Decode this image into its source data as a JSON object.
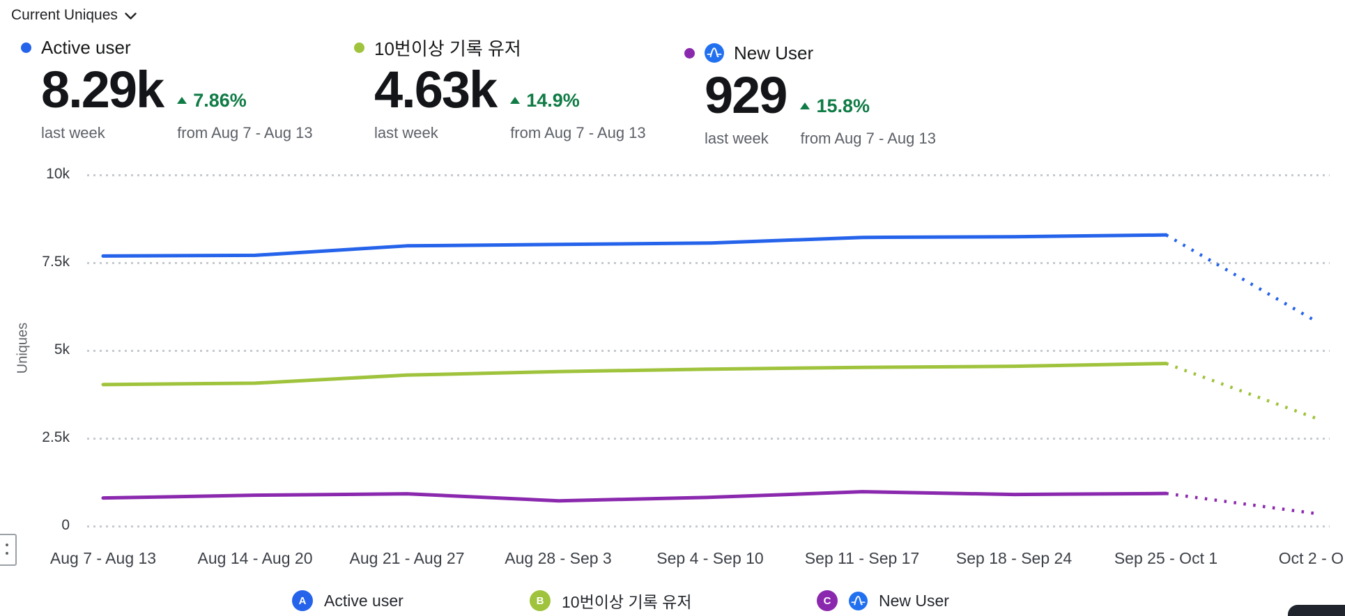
{
  "header": {
    "metric_selector_label": "Current Uniques"
  },
  "metrics": [
    {
      "name": "Active user",
      "value": "8.29k",
      "value_caption": "last week",
      "trend_direction": "up",
      "trend": "7.86%",
      "trend_caption": "from Aug 7 - Aug 13",
      "color": "#2563eb"
    },
    {
      "name": "10번이상 기록 유저",
      "value": "4.63k",
      "value_caption": "last week",
      "trend_direction": "up",
      "trend": "14.9%",
      "trend_caption": "from Aug 7 - Aug 13",
      "color": "#9fc33c"
    },
    {
      "name": "New User",
      "value": "929",
      "value_caption": "last week",
      "trend_direction": "up",
      "trend": "15.8%",
      "trend_caption": "from Aug 7 - Aug 13",
      "color": "#8a28ae",
      "source_icon": "amplitude-icon"
    }
  ],
  "chart_data": {
    "type": "line",
    "title": "Current Uniques",
    "xlabel": "",
    "ylabel": "Uniques",
    "ylim": [
      0,
      10000
    ],
    "yticks": [
      "0",
      "2.5k",
      "5k",
      "7.5k",
      "10k"
    ],
    "ytick_values": [
      0,
      2500,
      5000,
      7500,
      10000
    ],
    "grid": "horizontal-dotted",
    "legend_position": "bottom",
    "categories": [
      "Aug 7 - Aug 13",
      "Aug 14 - Aug 20",
      "Aug 21 - Aug 27",
      "Aug 28 - Sep 3",
      "Sep 4 - Sep 10",
      "Sep 11 - Sep 17",
      "Sep 18 - Sep 24",
      "Sep 25 - Oct 1",
      "Oct 2 - O..."
    ],
    "series": [
      {
        "name": "Active user",
        "color": "#2563eb",
        "values": [
          7690,
          7710,
          7980,
          8020,
          8060,
          8220,
          8240,
          8290
        ],
        "projected_value": 5800,
        "projected_style": "dotted"
      },
      {
        "name": "10번이상 기록 유저",
        "color": "#9fc33c",
        "values": [
          4030,
          4070,
          4300,
          4400,
          4470,
          4520,
          4550,
          4630
        ],
        "projected_value": 3050,
        "projected_style": "dotted"
      },
      {
        "name": "New User",
        "color": "#8a28ae",
        "values": [
          800,
          880,
          920,
          720,
          820,
          980,
          900,
          929
        ],
        "projected_value": 350,
        "projected_style": "dotted"
      }
    ]
  },
  "legend": [
    {
      "key": "A",
      "label": "Active user",
      "color": "#2563eb"
    },
    {
      "key": "B",
      "label": "10번이상 기록 유저",
      "color": "#9fc33c"
    },
    {
      "key": "C",
      "label": "New User",
      "color": "#8a28ae",
      "source_icon": "amplitude-icon"
    }
  ],
  "colors": {
    "trend_positive": "#0f7b45",
    "amplitude_blue": "#2170f0",
    "grid_dot": "#c6c9ce",
    "axis_text": "#3b3f46",
    "caption_text": "#5b5f66"
  }
}
